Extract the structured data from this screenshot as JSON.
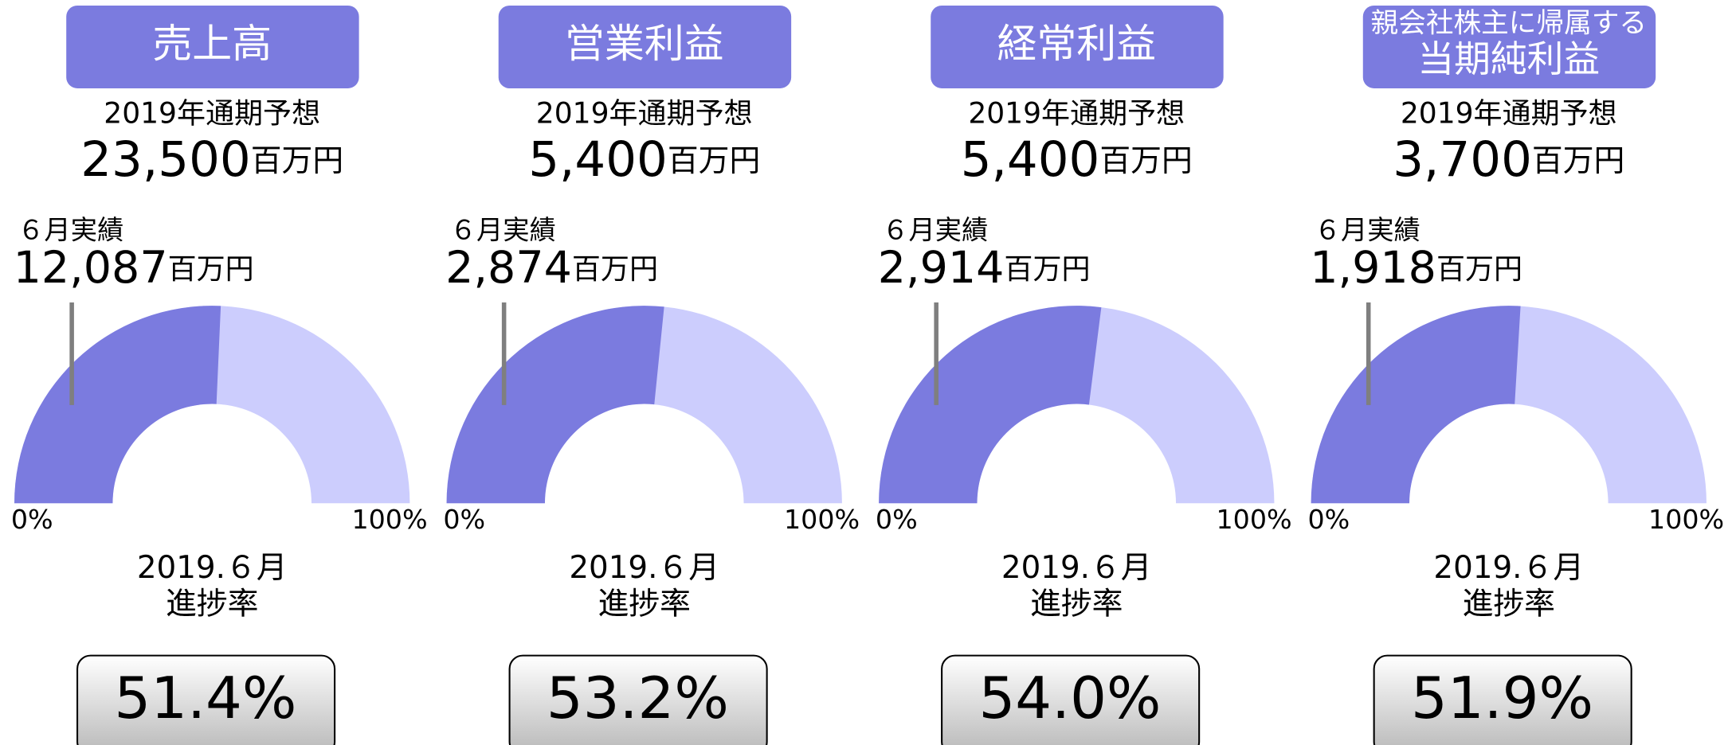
{
  "chart_data": [
    {
      "type": "gauge",
      "title": [
        "売上高"
      ],
      "subtitle": "2019年通期予想",
      "forecast": 23500,
      "forecast_label": "23,500",
      "unit": "百万円",
      "actual_title": "６月実績",
      "actual": 12087,
      "actual_label": "12,087",
      "ylim": [
        0,
        100
      ],
      "yticks": [
        {
          "value": 0,
          "label": "0%"
        },
        {
          "value": 100,
          "label": "100%"
        }
      ],
      "period": "2019.６月",
      "rate_title": "進捗率",
      "value": 51.4,
      "value_label": "51.4%",
      "color": "#7b7bdf",
      "track_color": "#cccdfd"
    },
    {
      "type": "gauge",
      "title": [
        "営業利益"
      ],
      "subtitle": "2019年通期予想",
      "forecast": 5400,
      "forecast_label": "5,400",
      "unit": "百万円",
      "actual_title": "６月実績",
      "actual": 2874,
      "actual_label": "2,874",
      "ylim": [
        0,
        100
      ],
      "yticks": [
        {
          "value": 0,
          "label": "0%"
        },
        {
          "value": 100,
          "label": "100%"
        }
      ],
      "period": "2019.６月",
      "rate_title": "進捗率",
      "value": 53.2,
      "value_label": "53.2%",
      "color": "#7b7bdf",
      "track_color": "#cccdfd"
    },
    {
      "type": "gauge",
      "title": [
        "経常利益"
      ],
      "subtitle": "2019年通期予想",
      "forecast": 5400,
      "forecast_label": "5,400",
      "unit": "百万円",
      "actual_title": "６月実績",
      "actual": 2914,
      "actual_label": "2,914",
      "ylim": [
        0,
        100
      ],
      "yticks": [
        {
          "value": 0,
          "label": "0%"
        },
        {
          "value": 100,
          "label": "100%"
        }
      ],
      "period": "2019.６月",
      "rate_title": "進捗率",
      "value": 54.0,
      "value_label": "54.0%",
      "color": "#7b7bdf",
      "track_color": "#cccdfd"
    },
    {
      "type": "gauge",
      "title": [
        "親会社株主に帰属する",
        "当期純利益"
      ],
      "subtitle": "2019年通期予想",
      "forecast": 3700,
      "forecast_label": "3,700",
      "unit": "百万円",
      "actual_title": "６月実績",
      "actual": 1918,
      "actual_label": "1,918",
      "ylim": [
        0,
        100
      ],
      "yticks": [
        {
          "value": 0,
          "label": "0%"
        },
        {
          "value": 100,
          "label": "100%"
        }
      ],
      "period": "2019.６月",
      "rate_title": "進捗率",
      "value": 51.9,
      "value_label": "51.9%",
      "color": "#7b7bdf",
      "track_color": "#cccdfd"
    }
  ]
}
